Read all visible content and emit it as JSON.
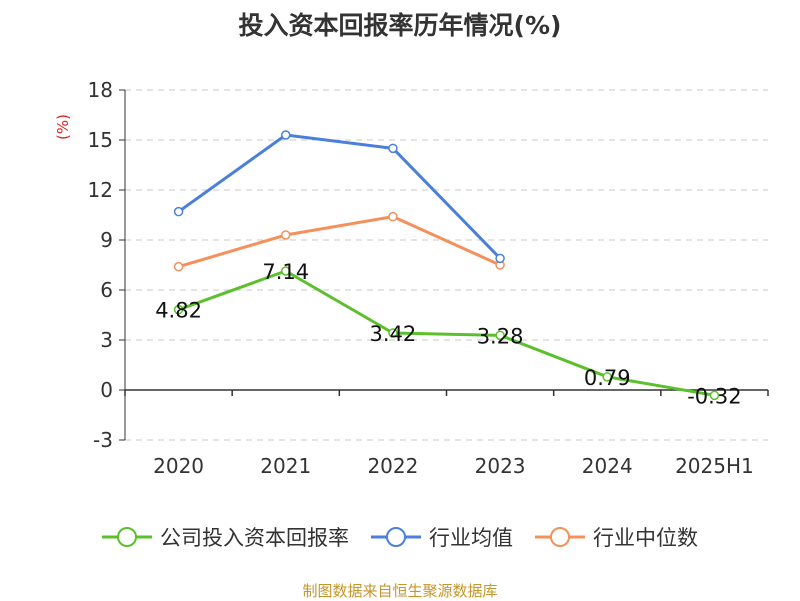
{
  "chart_data": {
    "type": "line",
    "title": "投入资本回报率历年情况(%)",
    "ylabel": "(%)",
    "ylim": [
      -3,
      18
    ],
    "yticks": [
      -3,
      0,
      3,
      6,
      9,
      12,
      15,
      18
    ],
    "grid": true,
    "legend_position": "bottom",
    "categories": [
      "2020",
      "2021",
      "2022",
      "2023",
      "2024",
      "2025H1"
    ],
    "series": [
      {
        "name": "公司投入资本回报率",
        "color": "#5cc02c",
        "values": [
          4.82,
          7.14,
          3.42,
          3.28,
          0.79,
          -0.32
        ],
        "labels": [
          "4.82",
          "7.14",
          "3.42",
          "3.28",
          "0.79",
          "-0.32"
        ]
      },
      {
        "name": "行业均值",
        "color": "#4a7fdb",
        "values": [
          10.7,
          15.3,
          14.5,
          7.9,
          null,
          null
        ]
      },
      {
        "name": "行业中位数",
        "color": "#f5905a",
        "values": [
          7.4,
          9.3,
          10.4,
          7.5,
          null,
          null
        ]
      }
    ]
  },
  "source_note": "制图数据来自恒生聚源数据库"
}
